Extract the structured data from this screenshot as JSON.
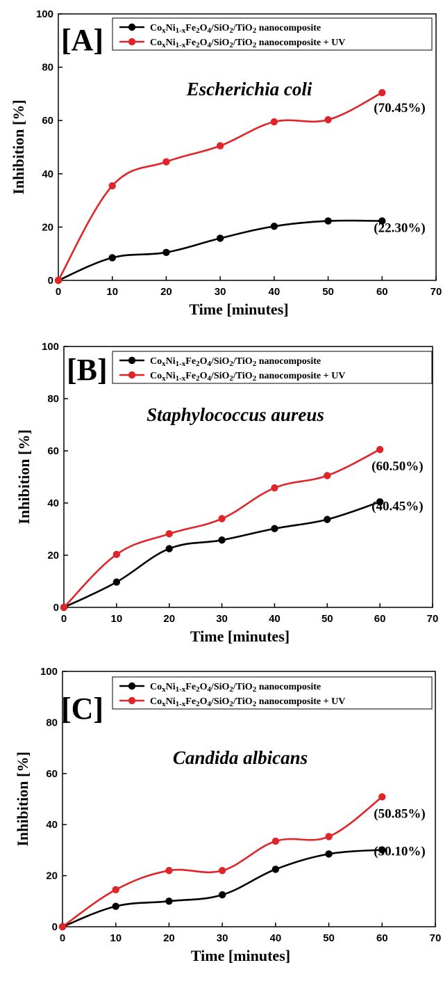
{
  "chart_data": [
    {
      "type": "line",
      "panel_label": "[A]",
      "title": "Escherichia coli",
      "xlabel": "Time [minutes]",
      "ylabel": "Inhibition [%]",
      "xlim": [
        0,
        70
      ],
      "ylim": [
        0,
        100
      ],
      "xticks": [
        0,
        10,
        20,
        30,
        40,
        50,
        60,
        70
      ],
      "yticks": [
        0,
        20,
        40,
        60,
        80,
        100
      ],
      "x": [
        0,
        10,
        20,
        30,
        40,
        50,
        60
      ],
      "legend_position": "top-right",
      "grid": false,
      "series": [
        {
          "name": "CoxNi1-xFe2O4/SiO2/TiO2 nanocomposite",
          "color": "#000000",
          "values": [
            0,
            8.5,
            10.5,
            15.8,
            20.3,
            22.3,
            22.3
          ],
          "end_label": "(22.30%)"
        },
        {
          "name": "CoxNi1-xFe2O4/SiO2/TiO2 nanocomposite + UV",
          "color": "#e0252a",
          "values": [
            0,
            35.5,
            44.5,
            50.5,
            59.5,
            60.3,
            70.45
          ],
          "end_label": "(70.45%)"
        }
      ]
    },
    {
      "type": "line",
      "panel_label": "[B]",
      "title": "Staphylococcus aureus",
      "xlabel": "Time [minutes]",
      "ylabel": "Inhibition [%]",
      "xlim": [
        0,
        70
      ],
      "ylim": [
        0,
        100
      ],
      "xticks": [
        0,
        10,
        20,
        30,
        40,
        50,
        60,
        70
      ],
      "yticks": [
        0,
        20,
        40,
        60,
        80,
        100
      ],
      "x": [
        0,
        10,
        20,
        30,
        40,
        50,
        60
      ],
      "legend_position": "top-right",
      "grid": false,
      "series": [
        {
          "name": "CoxNi1-xFe2O4/SiO2/TiO2 nanocomposite",
          "color": "#000000",
          "values": [
            0,
            9.7,
            22.5,
            25.8,
            30.2,
            33.7,
            40.45
          ],
          "end_label": "(40.45%)"
        },
        {
          "name": "CoxNi1-xFe2O4/SiO2/TiO2 nanocomposite + UV",
          "color": "#e0252a",
          "values": [
            0,
            20.3,
            28.2,
            34.0,
            45.8,
            50.5,
            60.5
          ],
          "end_label": "(60.50%)"
        }
      ]
    },
    {
      "type": "line",
      "panel_label": "[C]",
      "title": "Candida albicans",
      "xlabel": "Time [minutes]",
      "ylabel": "Inhibition [%]",
      "xlim": [
        0,
        70
      ],
      "ylim": [
        0,
        100
      ],
      "xticks": [
        0,
        10,
        20,
        30,
        40,
        50,
        60,
        70
      ],
      "yticks": [
        0,
        20,
        40,
        60,
        80,
        100
      ],
      "x": [
        0,
        10,
        20,
        30,
        40,
        50,
        60
      ],
      "legend_position": "top-right",
      "grid": false,
      "series": [
        {
          "name": "CoxNi1-xFe2O4/SiO2/TiO2 nanocomposite",
          "color": "#000000",
          "values": [
            0,
            8.0,
            10.0,
            12.5,
            22.5,
            28.5,
            30.1
          ],
          "end_label": "(30.10%)"
        },
        {
          "name": "CoxNi1-xFe2O4/SiO2/TiO2 nanocomposite + UV",
          "color": "#e0252a",
          "values": [
            0,
            14.5,
            22.0,
            22.0,
            33.5,
            35.3,
            50.85
          ],
          "end_label": "(50.85%)"
        }
      ]
    }
  ]
}
